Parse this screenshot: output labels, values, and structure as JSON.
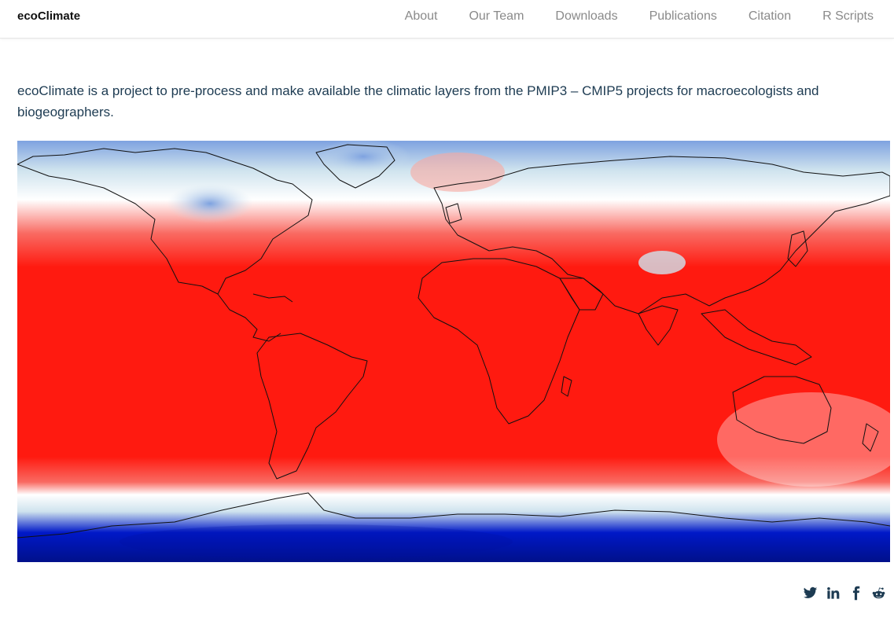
{
  "navbar": {
    "brand": "ecoClimate",
    "links": [
      "About",
      "Our Team",
      "Downloads",
      "Publications",
      "Citation",
      "R Scripts"
    ]
  },
  "intro": {
    "text": "ecoClimate is a project to pre-process and make available the climatic layers from the PMIP3 – CMIP5 projects for macroecologists and biogeographers."
  },
  "map": {
    "colors": {
      "hot": "#ff1a10",
      "warm": "#f96a62",
      "neutral": "#ffffff",
      "cool": "#cfe3ee",
      "cold": "#7ea2e0",
      "freezing": "#0018c8",
      "deep": "#00108a"
    }
  },
  "share": {
    "icons": [
      "twitter-icon",
      "linkedin-icon",
      "facebook-icon",
      "reddit-icon"
    ]
  }
}
